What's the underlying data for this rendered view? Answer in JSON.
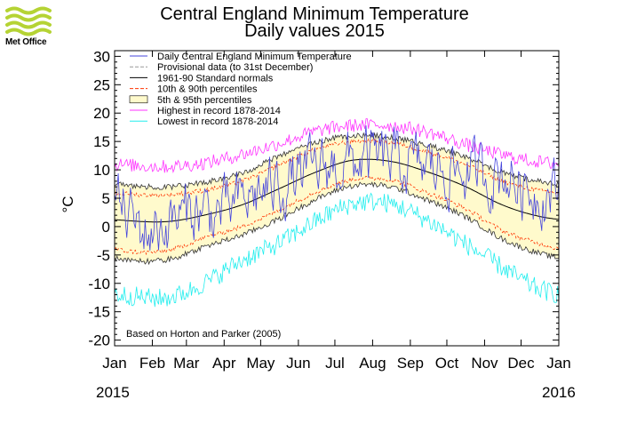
{
  "logo": {
    "text": "Met Office",
    "icon": "met-office-wave-logo",
    "color": "#b5d334"
  },
  "chart_data": {
    "type": "line",
    "title": "Central England Minimum Temperature",
    "subtitle": "Daily values 2015",
    "ylabel": "°C",
    "ylim": [
      -21,
      31
    ],
    "yticks": [
      30,
      25,
      20,
      15,
      10,
      5,
      0,
      -5,
      -10,
      -15,
      -20
    ],
    "xticks": [
      "Jan",
      "Feb",
      "Mar",
      "Apr",
      "May",
      "Jun",
      "Jul",
      "Aug",
      "Sep",
      "Oct",
      "Nov",
      "Dec",
      "Jan"
    ],
    "year_start": "2015",
    "year_end": "2016",
    "note": "Based on Horton and Parker (2005)",
    "legend_position": "top-left",
    "legend": [
      {
        "label": "Daily Central England Minimum Temperature",
        "color": "#4444dd",
        "style": "line"
      },
      {
        "label": "Provisional data (to 31st December)",
        "color": "#999999",
        "style": "dash"
      },
      {
        "label": "1961-90 Standard normals",
        "color": "#000000",
        "style": "line"
      },
      {
        "label": "10th & 90th percentiles",
        "color": "#ff3300",
        "style": "dash"
      },
      {
        "label": "5th & 95th percentiles",
        "color": "#fffacc",
        "style": "fill"
      },
      {
        "label": "Highest in record 1878-2014",
        "color": "#ff33ff",
        "style": "line"
      },
      {
        "label": "Lowest in record 1878-2014",
        "color": "#22eeee",
        "style": "line"
      }
    ],
    "normal_nodes": {
      "month_midpoints_doy": [
        15,
        45,
        74,
        105,
        135,
        166,
        196,
        227,
        258,
        288,
        319,
        349
      ],
      "normal": [
        1.0,
        0.9,
        2.0,
        3.8,
        6.6,
        9.6,
        11.7,
        11.5,
        9.6,
        7.1,
        3.8,
        1.8
      ],
      "p95": [
        7.2,
        7.0,
        7.8,
        9.4,
        12.3,
        14.8,
        16.0,
        15.7,
        14.3,
        12.3,
        9.5,
        8.0
      ],
      "p05": [
        -6.0,
        -5.8,
        -3.6,
        -1.5,
        1.3,
        4.8,
        7.2,
        7.0,
        4.6,
        1.8,
        -2.2,
        -4.7
      ],
      "p90": [
        5.7,
        5.6,
        6.4,
        8.0,
        10.8,
        13.6,
        15.0,
        14.8,
        13.1,
        11.0,
        8.0,
        6.4
      ],
      "p10": [
        -4.4,
        -4.2,
        -2.0,
        0.0,
        2.8,
        6.1,
        8.3,
        8.2,
        5.9,
        3.2,
        -0.7,
        -3.0
      ],
      "highest": [
        10.8,
        10.6,
        11.2,
        12.7,
        14.6,
        16.8,
        17.8,
        17.8,
        16.6,
        14.5,
        12.6,
        11.4
      ],
      "lowest": [
        -12.2,
        -12.5,
        -10.0,
        -6.0,
        -3.0,
        1.0,
        4.0,
        4.0,
        1.0,
        -3.0,
        -7.2,
        -11.0
      ]
    },
    "daily_2015_nodes": {
      "doy": [
        1,
        12,
        25,
        38,
        52,
        66,
        80,
        95,
        110,
        125,
        140,
        155,
        170,
        185,
        200,
        215,
        230,
        245,
        260,
        275,
        290,
        305,
        320,
        335,
        350,
        365
      ],
      "value": [
        5.0,
        2.0,
        -1.0,
        0.0,
        1.5,
        3.0,
        2.5,
        3.0,
        5.0,
        6.5,
        7.5,
        9.0,
        10.0,
        11.0,
        11.5,
        12.0,
        11.5,
        10.5,
        10.5,
        10.0,
        9.5,
        9.0,
        9.5,
        7.0,
        6.0,
        6.5
      ],
      "variability": 4.0
    }
  }
}
